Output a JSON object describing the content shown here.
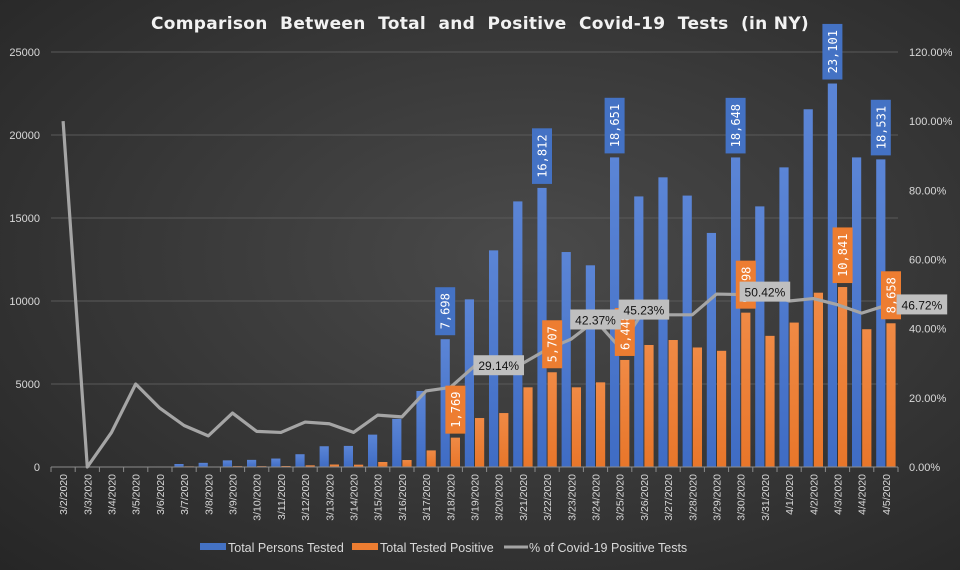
{
  "chart_data": {
    "type": "bar",
    "title": "Comparison  Between  Total  and  Positive  Covid-19  Tests  (in NY)",
    "xlabel": "",
    "ylabel": "",
    "ylim": [
      0,
      25000
    ],
    "y_ticks": [
      "0",
      "5000",
      "10000",
      "15000",
      "20000",
      "25000"
    ],
    "y2lim": [
      0,
      1.2
    ],
    "y2_ticks": [
      "0.00%",
      "20.00%",
      "40.00%",
      "60.00%",
      "80.00%",
      "100.00%",
      "120.00%"
    ],
    "grid": true,
    "legend_position": "bottom",
    "categories": [
      "3/2/2020",
      "3/3/2020",
      "3/4/2020",
      "3/5/2020",
      "3/6/2020",
      "3/7/2020",
      "3/8/2020",
      "3/9/2020",
      "3/10/2020",
      "3/11/2020",
      "3/12/2020",
      "3/13/2020",
      "3/14/2020",
      "3/15/2020",
      "3/16/2020",
      "3/17/2020",
      "3/18/2020",
      "3/19/2020",
      "3/20/2020",
      "3/21/2020",
      "3/22/2020",
      "3/23/2020",
      "3/24/2020",
      "3/25/2020",
      "3/26/2020",
      "3/27/2020",
      "3/28/2020",
      "3/29/2020",
      "3/30/2020",
      "3/31/2020",
      "4/1/2020",
      "4/2/2020",
      "4/3/2020",
      "4/4/2020",
      "4/5/2020"
    ],
    "series": [
      {
        "name": "Total Persons Tested",
        "kind": "bar",
        "axis": "left",
        "color": "#4472c4",
        "values": [
          1,
          0,
          20,
          30,
          30,
          180,
          250,
          400,
          430,
          510,
          770,
          1250,
          1270,
          1950,
          2900,
          4580,
          7698,
          10100,
          13050,
          16000,
          16812,
          12950,
          12150,
          18651,
          16300,
          17450,
          16350,
          14100,
          18648,
          15700,
          18050,
          21550,
          23101,
          18650,
          18531
        ],
        "labels": {
          "16": "7,698",
          "20": "16,812",
          "23": "18,651",
          "28": "18,648",
          "32": "23,101",
          "34": "18,531"
        }
      },
      {
        "name": "Total Tested Positive",
        "kind": "bar",
        "axis": "left",
        "color": "#ed7d31",
        "values": [
          1,
          0,
          10,
          20,
          20,
          40,
          30,
          50,
          50,
          60,
          100,
          150,
          140,
          300,
          420,
          1000,
          1769,
          2950,
          3250,
          4800,
          5707,
          4800,
          5100,
          6448,
          7350,
          7650,
          7200,
          7000,
          9298,
          7900,
          8700,
          10500,
          10841,
          8300,
          8658
        ],
        "labels": {
          "16": "1,769",
          "20": "5,707",
          "23": "6,448",
          "28": "9,298",
          "32": "10,841",
          "34": "8,658"
        }
      },
      {
        "name": "% of Covid-19 Positive Tests",
        "kind": "line",
        "axis": "right",
        "color": "#a5a5a5",
        "values": [
          1.0,
          0.0,
          0.1,
          0.24,
          0.17,
          0.12,
          0.09,
          0.156,
          0.103,
          0.1,
          0.13,
          0.125,
          0.1,
          0.15,
          0.145,
          0.22,
          0.23,
          0.292,
          0.2914,
          0.3,
          0.34,
          0.37,
          0.4237,
          0.3457,
          0.4523,
          0.44,
          0.44,
          0.5,
          0.4986,
          0.5042,
          0.48,
          0.487,
          0.4693,
          0.445,
          0.4672
        ],
        "labels": {
          "18": "29.14%",
          "22": "42.37%",
          "24": "45.23%",
          "29": "50.42%",
          "34": "46.72%"
        }
      }
    ]
  }
}
